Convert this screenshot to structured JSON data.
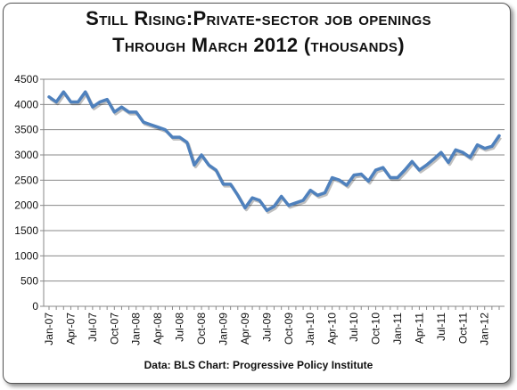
{
  "chart_data": {
    "type": "line",
    "title_line1": "Still Rising:Private-sector job openings",
    "title_line2": "Through March 2012 (thousands)",
    "source": "Data: BLS  Chart: Progressive Policy Institute",
    "ylim": [
      0,
      4500
    ],
    "yticks": [
      0,
      500,
      1000,
      1500,
      2000,
      2500,
      3000,
      3500,
      4000,
      4500
    ],
    "grid": true,
    "legend": "none",
    "line_color": "#4f81bd",
    "x_tick_labels": [
      "Jan-07",
      "Apr-07",
      "Jul-07",
      "Oct-07",
      "Jan-08",
      "Apr-08",
      "Jul-08",
      "Oct-08",
      "Jan-09",
      "Apr-09",
      "Jul-09",
      "Oct-09",
      "Jan-10",
      "Apr-10",
      "Jul-10",
      "Oct-10",
      "Jan-11",
      "Apr-11",
      "Jul-11",
      "Oct-11",
      "Jan-12"
    ],
    "x": [
      "Jan-07",
      "Feb-07",
      "Mar-07",
      "Apr-07",
      "May-07",
      "Jun-07",
      "Jul-07",
      "Aug-07",
      "Sep-07",
      "Oct-07",
      "Nov-07",
      "Dec-07",
      "Jan-08",
      "Feb-08",
      "Mar-08",
      "Apr-08",
      "May-08",
      "Jun-08",
      "Jul-08",
      "Aug-08",
      "Sep-08",
      "Oct-08",
      "Nov-08",
      "Dec-08",
      "Jan-09",
      "Feb-09",
      "Mar-09",
      "Apr-09",
      "May-09",
      "Jun-09",
      "Jul-09",
      "Aug-09",
      "Sep-09",
      "Oct-09",
      "Nov-09",
      "Dec-09",
      "Jan-10",
      "Feb-10",
      "Mar-10",
      "Apr-10",
      "May-10",
      "Jun-10",
      "Jul-10",
      "Aug-10",
      "Sep-10",
      "Oct-10",
      "Nov-10",
      "Dec-10",
      "Jan-11",
      "Feb-11",
      "Mar-11",
      "Apr-11",
      "May-11",
      "Jun-11",
      "Jul-11",
      "Aug-11",
      "Sep-11",
      "Oct-11",
      "Nov-11",
      "Dec-11",
      "Jan-12",
      "Feb-12",
      "Mar-12"
    ],
    "values": [
      4150,
      4050,
      4250,
      4050,
      4050,
      4250,
      3950,
      4050,
      4100,
      3850,
      3950,
      3850,
      3850,
      3650,
      3600,
      3550,
      3500,
      3350,
      3350,
      3250,
      2800,
      3000,
      2800,
      2700,
      2420,
      2420,
      2200,
      1950,
      2150,
      2100,
      1900,
      1980,
      2180,
      2000,
      2050,
      2100,
      2300,
      2200,
      2250,
      2550,
      2500,
      2400,
      2600,
      2620,
      2480,
      2700,
      2750,
      2550,
      2550,
      2700,
      2870,
      2700,
      2800,
      2920,
      3050,
      2850,
      3100,
      3050,
      2950,
      3200,
      3130,
      3170,
      3380
    ]
  }
}
